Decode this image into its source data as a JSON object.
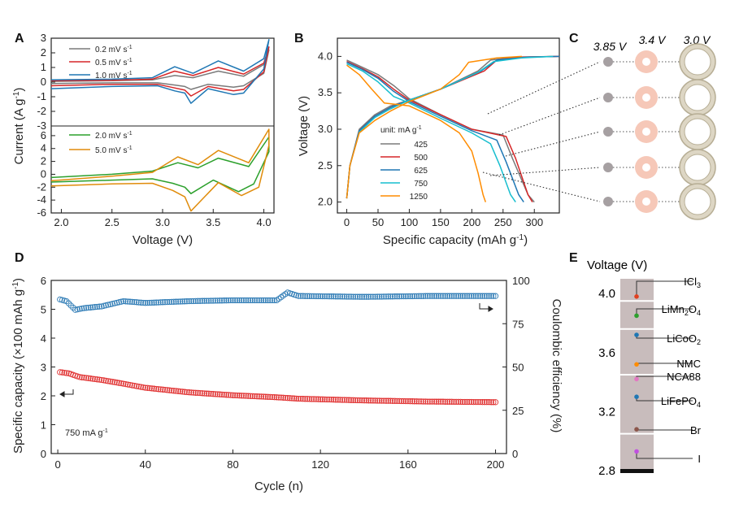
{
  "figure": {
    "panels": [
      "A",
      "B",
      "C",
      "D",
      "E"
    ]
  },
  "chart_data": [
    {
      "id": "A",
      "type": "line",
      "title": "",
      "xlabel": "Voltage (V)",
      "ylabel": "Current (A g",
      "ylabel_sup": "-1",
      "xlim": [
        1.9,
        4.1
      ],
      "x_ticks": [
        "2.0",
        "2.5",
        "3.0",
        "3.5",
        "4.0"
      ],
      "top": {
        "ylim": [
          -3,
          3
        ],
        "y_ticks": [
          "3",
          "2",
          "1",
          "0",
          "-1",
          "-2",
          "-3"
        ],
        "series": [
          {
            "name": "0.2 mV s",
            "unit_sup": "-1",
            "color": "#7a7a7a",
            "x": [
              1.9,
              2.5,
              2.9,
              3.12,
              3.3,
              3.55,
              3.8,
              4.0,
              4.05,
              4.0,
              3.8,
              3.7,
              3.45,
              3.28,
              3.22,
              3.12,
              2.95,
              2.5,
              1.9
            ],
            "y": [
              0.05,
              0.1,
              0.15,
              0.45,
              0.3,
              0.75,
              0.4,
              1.2,
              2.2,
              0.6,
              -0.25,
              -0.35,
              -0.15,
              -0.5,
              -0.3,
              -0.2,
              -0.05,
              -0.05,
              -0.1
            ]
          },
          {
            "name": "0.5 mV s",
            "unit_sup": "-1",
            "color": "#d62728",
            "x": [
              1.9,
              2.5,
              2.9,
              3.12,
              3.3,
              3.55,
              3.8,
              4.0,
              4.05,
              4.0,
              3.8,
              3.7,
              3.45,
              3.28,
              3.22,
              3.12,
              2.95,
              2.5,
              1.9
            ],
            "y": [
              0.1,
              0.12,
              0.2,
              0.75,
              0.45,
              1.0,
              0.55,
              1.3,
              2.4,
              0.7,
              -0.5,
              -0.6,
              -0.3,
              -0.95,
              -0.55,
              -0.4,
              -0.15,
              -0.15,
              -0.25
            ]
          },
          {
            "name": "1.0 mV s",
            "unit_sup": "-1",
            "color": "#1f77b4",
            "x": [
              1.9,
              2.5,
              2.9,
              3.12,
              3.3,
              3.55,
              3.8,
              4.0,
              4.05,
              4.0,
              3.8,
              3.7,
              3.45,
              3.28,
              3.22,
              3.12,
              2.95,
              2.5,
              1.9
            ],
            "y": [
              0.15,
              0.2,
              0.3,
              1.05,
              0.6,
              1.45,
              0.75,
              1.6,
              2.9,
              0.9,
              -0.75,
              -0.85,
              -0.45,
              -1.45,
              -0.75,
              -0.6,
              -0.25,
              -0.3,
              -0.45
            ]
          }
        ]
      },
      "bottom": {
        "ylim": [
          -6,
          7.5
        ],
        "y_ticks": [
          "6",
          "4",
          "2",
          "0",
          "-2",
          "-4",
          "-6"
        ],
        "series": [
          {
            "name": "2.0 mV s",
            "unit_sup": "-1",
            "color": "#2ca02c",
            "x": [
              1.9,
              2.5,
              2.9,
              3.15,
              3.35,
              3.55,
              3.85,
              4.05,
              4.05,
              3.9,
              3.75,
              3.5,
              3.28,
              3.22,
              3.1,
              2.9,
              2.5,
              1.9
            ],
            "y": [
              -0.5,
              0.0,
              0.5,
              1.8,
              1.0,
              2.5,
              1.2,
              5.8,
              3.5,
              -1.5,
              -2.7,
              -0.9,
              -3.0,
              -2.0,
              -1.4,
              -0.7,
              -0.9,
              -1.2
            ]
          },
          {
            "name": "5.0 mV s",
            "unit_sup": "-1",
            "color": "#e08c0b",
            "x": [
              1.9,
              2.5,
              2.9,
              3.15,
              3.35,
              3.55,
              3.85,
              4.05,
              4.05,
              3.95,
              3.78,
              3.55,
              3.28,
              3.22,
              3.1,
              2.9,
              2.5,
              1.9
            ],
            "y": [
              -1.0,
              -0.3,
              0.3,
              2.7,
              1.5,
              3.7,
              1.8,
              7.0,
              4.5,
              -2.0,
              -3.3,
              -1.3,
              -5.7,
              -3.5,
              -2.5,
              -1.4,
              -1.5,
              -1.8
            ]
          }
        ]
      }
    },
    {
      "id": "B",
      "type": "line",
      "title": "",
      "xlabel": "Specific capacity (mAh g",
      "xlabel_sup": "-1",
      "ylabel": "Voltage (V)",
      "xlim": [
        -15,
        340
      ],
      "ylim": [
        1.85,
        4.25
      ],
      "x_ticks": [
        "0",
        "50",
        "100",
        "150",
        "200",
        "250",
        "300"
      ],
      "y_ticks": [
        "4.0",
        "3.5",
        "3.0",
        "2.5",
        "2.0"
      ],
      "legend_title": "unit: mA g",
      "legend_title_sup": "-1",
      "series": [
        {
          "name": "425",
          "color": "#7a7a7a",
          "discharge": {
            "x": [
              0,
              25,
              50,
              75,
              100,
              150,
              200,
              250,
              265,
              290,
              300
            ],
            "y": [
              3.95,
              3.85,
              3.75,
              3.6,
              3.42,
              3.2,
              3.0,
              2.92,
              2.6,
              2.1,
              2.0
            ]
          },
          "charge": {
            "x": [
              0,
              5,
              20,
              45,
              70,
              100,
              150,
              210,
              230,
              270,
              340
            ],
            "y": [
              2.05,
              2.5,
              3.0,
              3.2,
              3.32,
              3.4,
              3.55,
              3.8,
              3.95,
              3.99,
              4.0
            ]
          }
        },
        {
          "name": "500",
          "color": "#d62728",
          "discharge": {
            "x": [
              0,
              25,
              50,
              75,
              100,
              150,
              200,
              255,
              270,
              290,
              297
            ],
            "y": [
              3.93,
              3.83,
              3.72,
              3.55,
              3.4,
              3.2,
              3.0,
              2.9,
              2.6,
              2.1,
              2.0
            ]
          },
          "charge": {
            "x": [
              0,
              5,
              20,
              45,
              70,
              100,
              150,
              220,
              240,
              280,
              340
            ],
            "y": [
              2.05,
              2.5,
              2.98,
              3.18,
              3.3,
              3.4,
              3.55,
              3.8,
              3.95,
              3.99,
              4.0
            ]
          }
        },
        {
          "name": "625",
          "color": "#1f77b4",
          "discharge": {
            "x": [
              0,
              25,
              50,
              75,
              100,
              150,
              200,
              240,
              255,
              275,
              283
            ],
            "y": [
              3.92,
              3.82,
              3.7,
              3.52,
              3.38,
              3.18,
              2.98,
              2.85,
              2.55,
              2.1,
              2.0
            ]
          },
          "charge": {
            "x": [
              0,
              5,
              20,
              45,
              70,
              100,
              150,
              215,
              240,
              290,
              340
            ],
            "y": [
              2.05,
              2.5,
              2.98,
              3.18,
              3.3,
              3.4,
              3.55,
              3.8,
              3.95,
              3.99,
              4.0
            ]
          }
        },
        {
          "name": "750",
          "color": "#17becf",
          "discharge": {
            "x": [
              0,
              25,
              50,
              75,
              100,
              150,
              200,
              230,
              245,
              262,
              270
            ],
            "y": [
              3.9,
              3.8,
              3.65,
              3.45,
              3.36,
              3.15,
              2.95,
              2.8,
              2.5,
              2.1,
              2.0
            ]
          },
          "charge": {
            "x": [
              0,
              5,
              20,
              45,
              70,
              100,
              150,
              210,
              235,
              280,
              330
            ],
            "y": [
              2.05,
              2.5,
              2.96,
              3.16,
              3.28,
              3.4,
              3.55,
              3.78,
              3.93,
              3.98,
              4.0
            ]
          }
        },
        {
          "name": "1250",
          "color": "#ff8c00",
          "discharge": {
            "x": [
              0,
              20,
              40,
              60,
              100,
              150,
              180,
              200,
              210,
              218,
              222
            ],
            "y": [
              3.88,
              3.75,
              3.55,
              3.36,
              3.32,
              3.12,
              2.95,
              2.7,
              2.4,
              2.1,
              2.0
            ]
          },
          "charge": {
            "x": [
              0,
              5,
              20,
              45,
              70,
              100,
              150,
              180,
              195,
              240,
              280
            ],
            "y": [
              2.05,
              2.5,
              2.95,
              3.12,
              3.25,
              3.38,
              3.55,
              3.75,
              3.92,
              3.98,
              4.0
            ]
          }
        }
      ]
    },
    {
      "id": "D",
      "type": "scatter",
      "title": "",
      "xlabel": "Cycle (n)",
      "ylabel": "Specific capacity (×100 mAh g",
      "ylabel_sup": "-1",
      "ylabel2": "Coulombic efficiency (%)",
      "annotation": "750 mA g",
      "annotation_sup": "-1",
      "xlim": [
        -3,
        205
      ],
      "ylim": [
        0,
        6
      ],
      "ylim2": [
        0,
        100
      ],
      "x_ticks": [
        "0",
        "40",
        "80",
        "120",
        "160",
        "200"
      ],
      "y_ticks": [
        "6",
        "5",
        "4",
        "3",
        "2",
        "1",
        "0"
      ],
      "y2_ticks": [
        "100",
        "75",
        "50",
        "25",
        "0"
      ],
      "capacity_color": "#e03030",
      "efficiency_color": "#2e7bb5",
      "capacity_keypoints": {
        "x": [
          1,
          5,
          10,
          20,
          30,
          40,
          60,
          80,
          100,
          110,
          140,
          170,
          200
        ],
        "y": [
          2.82,
          2.78,
          2.65,
          2.55,
          2.42,
          2.28,
          2.12,
          2.02,
          1.95,
          1.9,
          1.84,
          1.8,
          1.78
        ]
      },
      "efficiency_keypoints": {
        "x": [
          1,
          4,
          8,
          12,
          20,
          30,
          40,
          60,
          80,
          100,
          105,
          110,
          140,
          170,
          200
        ],
        "y": [
          89,
          88,
          83,
          84,
          85,
          88,
          87,
          88,
          88.5,
          88.5,
          93,
          91,
          90.5,
          91,
          91
        ]
      }
    }
  ],
  "panel_c": {
    "voltage_labels": [
      "3.85 V",
      "3.4 V",
      "3.0 V"
    ],
    "rows": 5,
    "colors": {
      "dot": "#a6a0a2",
      "mid": "#f6c8b8",
      "mid_core": "#ffffff",
      "outer": "#ddd6c4",
      "outer_ring": "#b7ae95"
    }
  },
  "panel_e": {
    "title": "Voltage (V)",
    "y_ticks": [
      "4.0",
      "3.6",
      "3.2",
      "2.8"
    ],
    "ylim": [
      2.8,
      4.1
    ],
    "materials": [
      {
        "name": "ICl",
        "sub": "3",
        "suffix": "",
        "voltage": 3.98,
        "color": "#e04020"
      },
      {
        "name": "LiMn",
        "sub": "2",
        "suffix": "O",
        "sub2": "4",
        "voltage": 3.85,
        "color": "#2ca02c"
      },
      {
        "name": "LiCoO",
        "sub": "2",
        "suffix": "",
        "voltage": 3.72,
        "color": "#1f77b4"
      },
      {
        "name": "NMC",
        "sub": "",
        "suffix": "",
        "voltage": 3.52,
        "color": "#ff8c00"
      },
      {
        "name": "NCA88",
        "sub": "",
        "suffix": "",
        "voltage": 3.42,
        "color": "#e377c2"
      },
      {
        "name": "LiFePO",
        "sub": "4",
        "suffix": "",
        "voltage": 3.3,
        "color": "#1f77b4"
      },
      {
        "name": "Br",
        "sub": "",
        "suffix": "",
        "voltage": 3.08,
        "color": "#8c564b"
      },
      {
        "name": "I",
        "sub": "",
        "suffix": "",
        "voltage": 2.93,
        "color": "#c050e0"
      }
    ]
  }
}
